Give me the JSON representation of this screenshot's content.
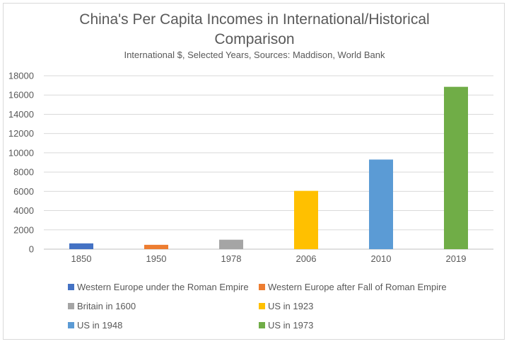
{
  "chart_data": {
    "type": "bar",
    "title": "China's Per Capita Incomes in International/Historical Comparison",
    "subtitle": "International $, Selected Years, Sources: Maddison, World Bank",
    "categories": [
      "1850",
      "1950",
      "1978",
      "2006",
      "2010",
      "2019"
    ],
    "values": [
      600,
      450,
      980,
      6050,
      9300,
      16850
    ],
    "yticks": [
      "0",
      "2000",
      "4000",
      "6000",
      "8000",
      "10000",
      "12000",
      "14000",
      "16000",
      "18000"
    ],
    "ylim": [
      0,
      18000
    ],
    "grid": true,
    "legend_position": "bottom",
    "series": [
      {
        "name": "Western Europe under the Roman Empire",
        "color": "#4472c4"
      },
      {
        "name": "Western Europe after Fall of Roman Empire",
        "color": "#ed7d31"
      },
      {
        "name": "Britain in 1600",
        "color": "#a5a5a5"
      },
      {
        "name": "US in 1923",
        "color": "#ffc000"
      },
      {
        "name": "US in 1948",
        "color": "#5b9bd5"
      },
      {
        "name": "US in 1973",
        "color": "#70ad47"
      }
    ]
  }
}
